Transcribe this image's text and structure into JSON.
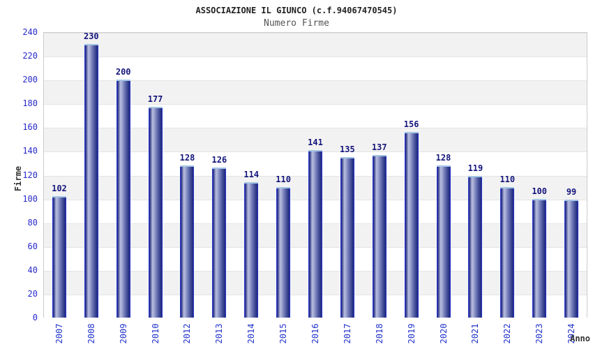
{
  "chart_data": {
    "type": "bar",
    "title": "ASSOCIAZIONE IL GIUNCO (c.f.94067470545)",
    "subtitle": "Numero Firme",
    "xlabel": "Anno",
    "ylabel": "Firme",
    "categories": [
      "2007",
      "2008",
      "2009",
      "2010",
      "2012",
      "2013",
      "2014",
      "2015",
      "2016",
      "2017",
      "2018",
      "2019",
      "2020",
      "2021",
      "2022",
      "2023",
      "2024"
    ],
    "values": [
      102,
      230,
      200,
      177,
      128,
      126,
      114,
      110,
      141,
      135,
      137,
      156,
      128,
      119,
      110,
      100,
      99
    ],
    "ylim": [
      0,
      240
    ],
    "ytick_step": 20,
    "ytick_labels": [
      "0",
      "20",
      "40",
      "60",
      "80",
      "100",
      "120",
      "140",
      "160",
      "180",
      "200",
      "220",
      "240"
    ],
    "grid": "alternating horizontal bands every 20 units",
    "legend": "none",
    "colors": {
      "bar_edge": "#2736c8",
      "bar_dark": "#20287a",
      "bar_highlight": "#b9bede",
      "bar_cap": "#a4c6e6",
      "tick_label_blue": "#2929cc",
      "value_label_navy": "#15157d",
      "band_gray": "#f2f2f2",
      "band_white": "#ffffff",
      "plot_border": "#cccccc",
      "title": "#222222",
      "subtitle": "#555555",
      "axis_title": "#333333",
      "background": "#ffffff"
    }
  }
}
